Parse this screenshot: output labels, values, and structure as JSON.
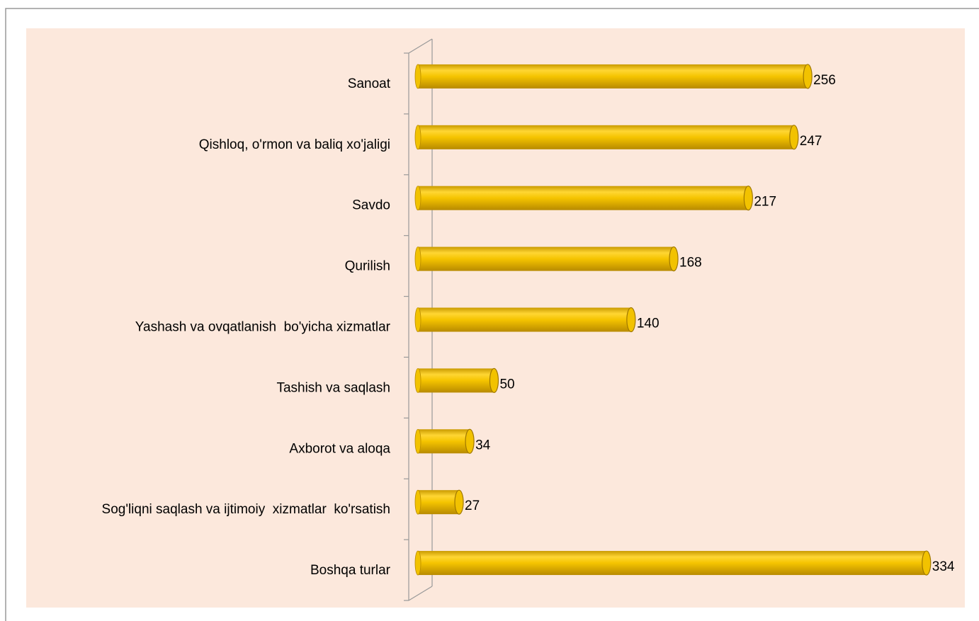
{
  "chart_data": {
    "type": "bar",
    "orientation": "horizontal",
    "categories": [
      "Sanoat",
      "Qishloq, o'rmon va baliq xo'jaligi",
      "Savdo",
      "Qurilish",
      "Yashash va ovqatlanish  bo'yicha xizmatlar",
      "Tashish va saqlash",
      "Axborot va aloqa",
      "Sog'liqni saqlash va ijtimoiy  xizmatlar  ko'rsatish",
      "Boshqa turlar"
    ],
    "values": [
      256,
      247,
      217,
      168,
      140,
      50,
      34,
      27,
      334
    ],
    "color": "#f2c200"
  }
}
